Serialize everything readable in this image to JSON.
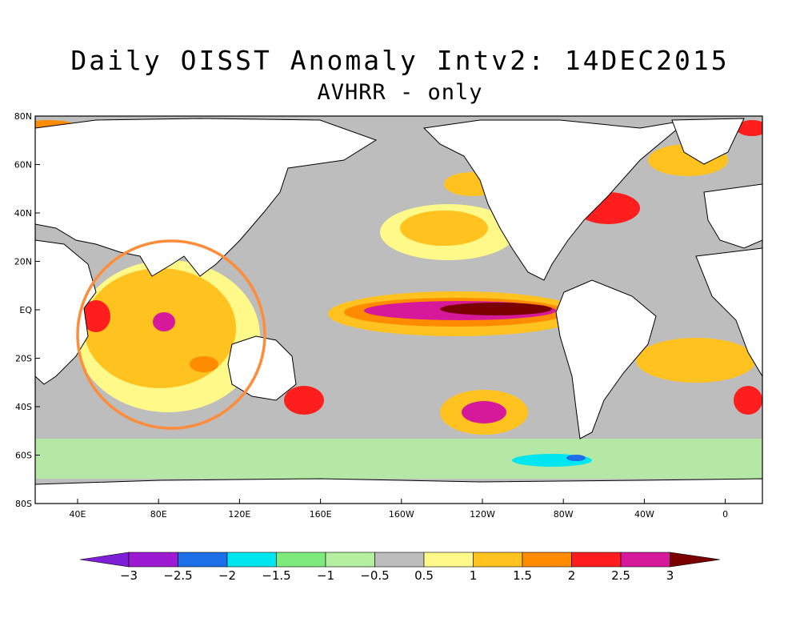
{
  "title": "Daily OISST Anomaly Intv2: 14DEC2015",
  "subtitle": "AVHRR - only",
  "lat_labels": [
    "80N",
    "60N",
    "40N",
    "20N",
    "EQ",
    "20S",
    "40S",
    "60S",
    "80S"
  ],
  "lon_labels": [
    "40E",
    "80E",
    "120E",
    "160E",
    "160W",
    "120W",
    "80W",
    "40W",
    "0"
  ],
  "colorbar": {
    "labels": [
      "-3",
      "-2.5",
      "-2",
      "-1.5",
      "-1",
      "-0.5",
      "0.5",
      "1",
      "1.5",
      "2",
      "2.5",
      "3"
    ],
    "colors": [
      "#7d1fd6",
      "#9c1ad2",
      "#1c6fe6",
      "#00e6f0",
      "#7eea7e",
      "#b4f0a0",
      "#bdbdbd",
      "#fff98a",
      "#ffc21e",
      "#ff8c00",
      "#ff1e1e",
      "#d6199a",
      "#7a0000"
    ]
  },
  "colors": {
    "land": "#ffffff",
    "neutral": "#bdbdbd",
    "highlight_circle": "#ff8c3a"
  }
}
